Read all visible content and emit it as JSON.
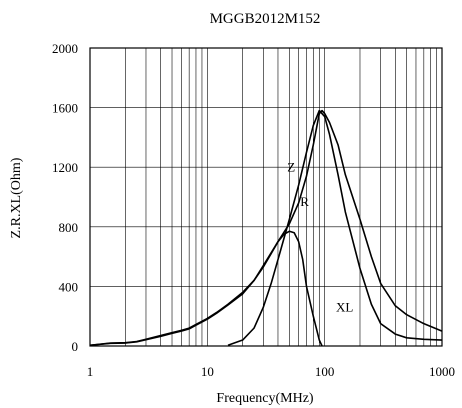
{
  "chart_data": {
    "type": "line",
    "title": "MGGB2012M152",
    "xlabel": "Frequency(MHz)",
    "ylabel": "Z.R.XL(Ohm)",
    "x_scale": "log",
    "xlim": [
      1,
      1000
    ],
    "ylim": [
      0,
      2000
    ],
    "x_ticks": [
      1,
      10,
      100,
      1000
    ],
    "x_tick_labels": [
      "1",
      "10",
      "100",
      "1000"
    ],
    "y_ticks": [
      0,
      400,
      800,
      1200,
      1600,
      2000
    ],
    "y_tick_labels": [
      "0",
      "400",
      "800",
      "1200",
      "1600",
      "2000"
    ],
    "grid": true,
    "legend": "inline-labels",
    "series": [
      {
        "name": "Z",
        "label_at": [
          48,
          1170
        ],
        "points": [
          [
            1,
            5
          ],
          [
            1.5,
            20
          ],
          [
            2,
            22
          ],
          [
            2.5,
            30
          ],
          [
            3,
            45
          ],
          [
            4,
            70
          ],
          [
            5,
            90
          ],
          [
            6,
            105
          ],
          [
            7,
            120
          ],
          [
            8,
            145
          ],
          [
            10,
            185
          ],
          [
            12,
            225
          ],
          [
            15,
            280
          ],
          [
            20,
            360
          ],
          [
            25,
            440
          ],
          [
            30,
            540
          ],
          [
            40,
            700
          ],
          [
            50,
            820
          ],
          [
            60,
            960
          ],
          [
            70,
            1140
          ],
          [
            80,
            1350
          ],
          [
            90,
            1560
          ],
          [
            95,
            1580
          ],
          [
            100,
            1560
          ],
          [
            110,
            1500
          ],
          [
            130,
            1350
          ],
          [
            150,
            1150
          ],
          [
            200,
            850
          ],
          [
            250,
            600
          ],
          [
            300,
            420
          ],
          [
            400,
            270
          ],
          [
            500,
            210
          ],
          [
            700,
            150
          ],
          [
            1000,
            100
          ]
        ]
      },
      {
        "name": "R",
        "label_at": [
          62,
          940
        ],
        "points": [
          [
            15,
            5
          ],
          [
            20,
            40
          ],
          [
            25,
            120
          ],
          [
            30,
            260
          ],
          [
            35,
            420
          ],
          [
            40,
            580
          ],
          [
            50,
            850
          ],
          [
            60,
            1080
          ],
          [
            70,
            1300
          ],
          [
            80,
            1480
          ],
          [
            90,
            1580
          ],
          [
            100,
            1540
          ],
          [
            110,
            1420
          ],
          [
            130,
            1150
          ],
          [
            150,
            900
          ],
          [
            200,
            520
          ],
          [
            250,
            280
          ],
          [
            300,
            150
          ],
          [
            400,
            80
          ],
          [
            500,
            55
          ],
          [
            700,
            45
          ],
          [
            1000,
            40
          ]
        ]
      },
      {
        "name": "XL",
        "label_at": [
          125,
          230
        ],
        "points": [
          [
            1,
            5
          ],
          [
            1.5,
            18
          ],
          [
            2,
            20
          ],
          [
            2.5,
            28
          ],
          [
            3,
            42
          ],
          [
            4,
            65
          ],
          [
            5,
            85
          ],
          [
            6,
            100
          ],
          [
            7,
            115
          ],
          [
            8,
            140
          ],
          [
            10,
            180
          ],
          [
            12,
            220
          ],
          [
            15,
            275
          ],
          [
            20,
            350
          ],
          [
            25,
            440
          ],
          [
            30,
            530
          ],
          [
            35,
            620
          ],
          [
            40,
            700
          ],
          [
            45,
            750
          ],
          [
            50,
            770
          ],
          [
            55,
            760
          ],
          [
            60,
            700
          ],
          [
            65,
            580
          ],
          [
            70,
            400
          ],
          [
            80,
            200
          ],
          [
            90,
            40
          ],
          [
            95,
            0
          ]
        ]
      }
    ]
  }
}
